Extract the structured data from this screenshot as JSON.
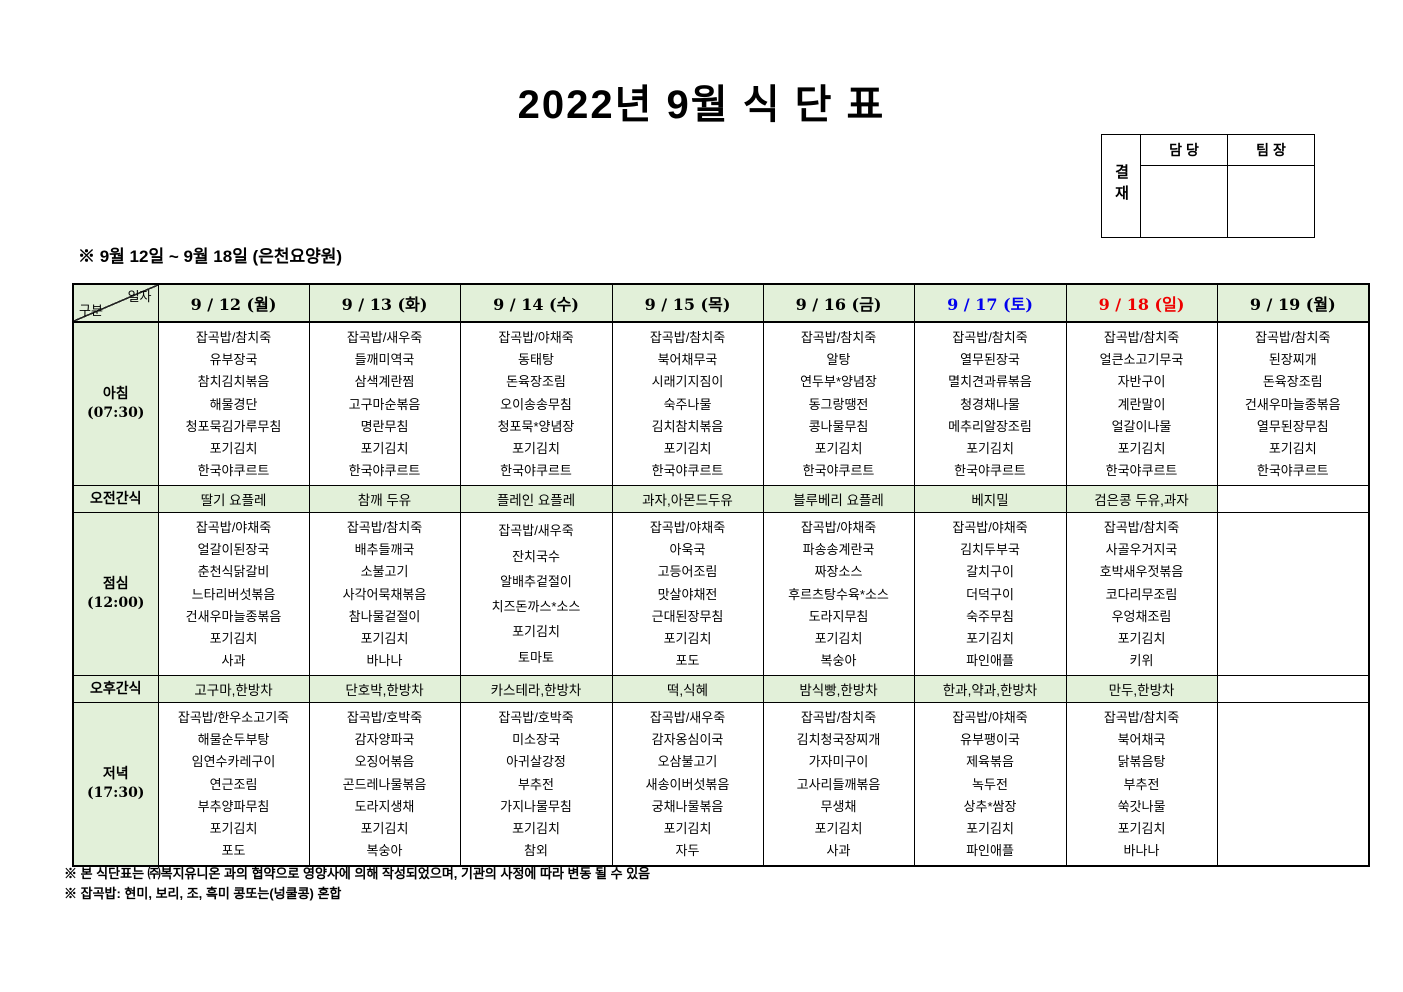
{
  "title": "2022년  9월  식  단  표",
  "approval": {
    "stamp_label": "결재",
    "columns": [
      "담  당",
      "팀  장"
    ]
  },
  "subtitle": "※  9월  12일  ~  9월  18일  (은천요양원)",
  "colors": {
    "header_bg": "#e2f0d9",
    "saturday": "#0000ee",
    "sunday": "#ee0000",
    "weekday": "#000000"
  },
  "table": {
    "corner": {
      "top": "일자",
      "bottom": "구분"
    },
    "date_headers": [
      {
        "label": "9 / 12 (월)",
        "color": "#000000"
      },
      {
        "label": "9 / 13 (화)",
        "color": "#000000"
      },
      {
        "label": "9 / 14 (수)",
        "color": "#000000"
      },
      {
        "label": "9 / 15 (목)",
        "color": "#000000"
      },
      {
        "label": "9 / 16 (금)",
        "color": "#000000"
      },
      {
        "label": "9 / 17 (토)",
        "color": "#0000ee"
      },
      {
        "label": "9 / 18 (일)",
        "color": "#ee0000"
      },
      {
        "label": "9 / 19 (월)",
        "color": "#000000"
      }
    ],
    "rows": [
      {
        "key": "breakfast",
        "type": "meal",
        "label_lines": [
          "아침",
          "(07:30)"
        ],
        "cells": [
          [
            "잡곡밥/참치죽",
            "유부장국",
            "참치김치볶음",
            "해물경단",
            "청포묵김가루무침",
            "포기김치",
            "한국야쿠르트"
          ],
          [
            "잡곡밥/새우죽",
            "들깨미역국",
            "삼색계란찜",
            "고구마순볶음",
            "명란무침",
            "포기김치",
            "한국야쿠르트"
          ],
          [
            "잡곡밥/야채죽",
            "동태탕",
            "돈육장조림",
            "오이송송무침",
            "청포묵*양념장",
            "포기김치",
            "한국야쿠르트"
          ],
          [
            "잡곡밥/참치죽",
            "북어채무국",
            "시래기지짐이",
            "숙주나물",
            "김치참치볶음",
            "포기김치",
            "한국야쿠르트"
          ],
          [
            "잡곡밥/참치죽",
            "알탕",
            "연두부*양념장",
            "동그랑땡전",
            "콩나물무침",
            "포기김치",
            "한국야쿠르트"
          ],
          [
            "잡곡밥/참치죽",
            "열무된장국",
            "멸치견과류볶음",
            "청경채나물",
            "메추리알장조림",
            "포기김치",
            "한국야쿠르트"
          ],
          [
            "잡곡밥/참치죽",
            "얼큰소고기무국",
            "자반구이",
            "계란말이",
            "얼갈이나물",
            "포기김치",
            "한국야쿠르트"
          ],
          [
            "잡곡밥/참치죽",
            "된장찌개",
            "돈육장조림",
            "건새우마늘종볶음",
            "열무된장무침",
            "포기김치",
            "한국야쿠르트"
          ]
        ]
      },
      {
        "key": "am-snack",
        "type": "snack",
        "label_lines": [
          "오전간식"
        ],
        "cells": [
          "딸기  요플레",
          "참깨  두유",
          "플레인  요플레",
          "과자,아몬드두유",
          "블루베리  요플레",
          "베지밀",
          "검은콩  두유,과자",
          ""
        ]
      },
      {
        "key": "lunch",
        "type": "meal",
        "label_lines": [
          "점심",
          "(12:00)"
        ],
        "cells": [
          [
            "잡곡밥/야채죽",
            "얼갈이된장국",
            "춘천식닭갈비",
            "느타리버섯볶음",
            "건새우마늘종볶음",
            "포기김치",
            "사과"
          ],
          [
            "잡곡밥/참치죽",
            "배추들깨국",
            "소불고기",
            "사각어묵채볶음",
            "참나물겉절이",
            "포기김치",
            "바나나"
          ],
          [
            "잡곡밥/새우죽",
            "잔치국수",
            "알배추겉절이",
            "치즈돈까스*소스",
            "포기김치",
            "토마토"
          ],
          [
            "잡곡밥/야채죽",
            "아욱국",
            "고등어조림",
            "맛살야채전",
            "근대된장무침",
            "포기김치",
            "포도"
          ],
          [
            "잡곡밥/야채죽",
            "파송송계란국",
            "짜장소스",
            "후르츠탕수육*소스",
            "도라지무침",
            "포기김치",
            "복숭아"
          ],
          [
            "잡곡밥/야채죽",
            "김치두부국",
            "갈치구이",
            "더덕구이",
            "숙주무침",
            "포기김치",
            "파인애플"
          ],
          [
            "잡곡밥/참치죽",
            "사골우거지국",
            "호박새우젓볶음",
            "코다리무조림",
            "우엉채조림",
            "포기김치",
            "키위"
          ],
          []
        ]
      },
      {
        "key": "pm-snack",
        "type": "snack",
        "label_lines": [
          "오후간식"
        ],
        "cells": [
          "고구마,한방차",
          "단호박,한방차",
          "카스테라,한방차",
          "떡,식혜",
          "밤식빵,한방차",
          "한과,약과,한방차",
          "만두,한방차",
          ""
        ]
      },
      {
        "key": "dinner",
        "type": "meal",
        "label_lines": [
          "저녁",
          "(17:30)"
        ],
        "cells": [
          [
            "잡곡밥/한우소고기죽",
            "해물순두부탕",
            "임연수카레구이",
            "연근조림",
            "부추양파무침",
            "포기김치",
            "포도"
          ],
          [
            "잡곡밥/호박죽",
            "감자양파국",
            "오징어볶음",
            "곤드레나물볶음",
            "도라지생채",
            "포기김치",
            "복숭아"
          ],
          [
            "잡곡밥/호박죽",
            "미소장국",
            "아귀살강정",
            "부추전",
            "가지나물무침",
            "포기김치",
            "참외"
          ],
          [
            "잡곡밥/새우죽",
            "감자옹심이국",
            "오삼불고기",
            "새송이버섯볶음",
            "궁채나물볶음",
            "포기김치",
            "자두"
          ],
          [
            "잡곡밥/참치죽",
            "김치청국장찌개",
            "가자미구이",
            "고사리들깨볶음",
            "무생채",
            "포기김치",
            "사과"
          ],
          [
            "잡곡밥/야채죽",
            "유부팽이국",
            "제육볶음",
            "녹두전",
            "상추*쌈장",
            "포기김치",
            "파인애플"
          ],
          [
            "잡곡밥/참치죽",
            "북어채국",
            "닭볶음탕",
            "부추전",
            "쑥갓나물",
            "포기김치",
            "바나나"
          ],
          []
        ]
      }
    ]
  },
  "footnotes": [
    "※ 본 식단표는 ㈜복지유니온 과의 협약으로 영양사에 의해 작성되었으며, 기관의 사정에 따라 변동 될 수 있음",
    "※ 잡곡밥: 현미, 보리, 조, 흑미 콩또는(넝쿨콩) 혼합"
  ]
}
